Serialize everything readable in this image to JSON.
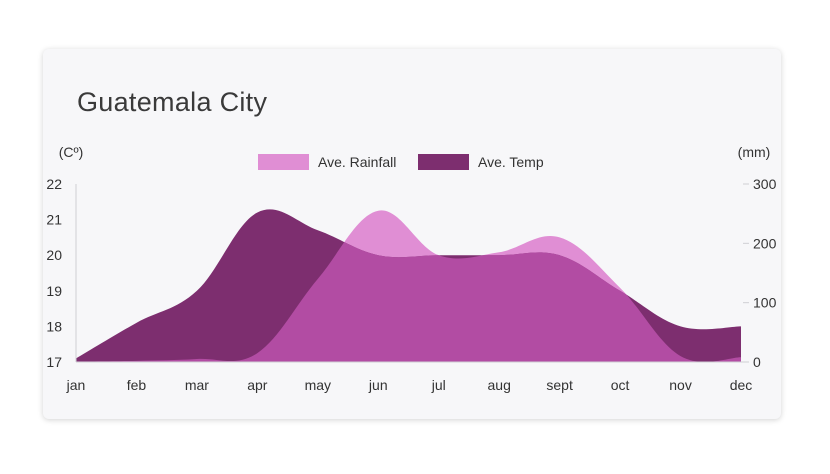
{
  "card": {
    "title": "Guatemala City"
  },
  "chart_data": {
    "type": "area",
    "title": "Guatemala City",
    "categories": [
      "jan",
      "feb",
      "mar",
      "apr",
      "may",
      "jun",
      "jul",
      "aug",
      "sept",
      "oct",
      "nov",
      "dec"
    ],
    "y_left": {
      "unit_label": "(Cº)",
      "ticks": [
        "22",
        "21",
        "20",
        "19",
        "18",
        "17"
      ],
      "range": [
        17,
        22
      ]
    },
    "y_right": {
      "unit_label": "(mm)",
      "ticks": [
        "300",
        "200",
        "100",
        "0"
      ],
      "range": [
        0,
        300
      ]
    },
    "legend": {
      "placement": "top-center"
    },
    "grid": false,
    "series": [
      {
        "name": "Ave. Rainfall",
        "axis": "right",
        "color": "#e08ed4",
        "values": [
          1,
          2,
          5,
          15,
          140,
          255,
          180,
          185,
          210,
          125,
          10,
          8
        ]
      },
      {
        "name": "Ave. Temp",
        "axis": "left",
        "color": "#7d2e6f",
        "values": [
          17.1,
          18.1,
          19.0,
          21.2,
          20.7,
          20.0,
          20.0,
          20.0,
          20.0,
          19.0,
          18.0,
          18.0
        ]
      }
    ],
    "overlap_color": "#b24ca3"
  }
}
